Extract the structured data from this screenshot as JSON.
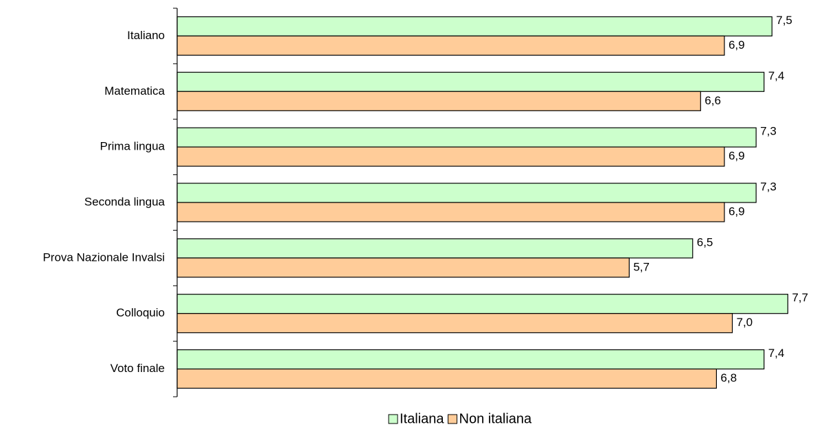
{
  "chart_data": {
    "type": "bar",
    "orientation": "horizontal",
    "categories": [
      "Italiano",
      "Matematica",
      "Prima lingua",
      "Seconda lingua",
      "Prova Nazionale Invalsi",
      "Colloquio",
      "Voto finale"
    ],
    "series": [
      {
        "name": "Italiana",
        "color": "#ccffcc",
        "values": [
          7.5,
          7.4,
          7.3,
          7.3,
          6.5,
          7.7,
          7.4
        ],
        "value_labels": [
          "7,5",
          "7,4",
          "7,3",
          "7,3",
          "6,5",
          "7,7",
          "7,4"
        ]
      },
      {
        "name": "Non italiana",
        "color": "#ffcc99",
        "values": [
          6.9,
          6.6,
          6.9,
          6.9,
          5.7,
          7.0,
          6.8
        ],
        "value_labels": [
          "6,9",
          "6,6",
          "6,9",
          "6,9",
          "5,7",
          "7,0",
          "6,8"
        ]
      }
    ],
    "xlim": [
      0,
      8
    ],
    "legend": "bottom"
  }
}
